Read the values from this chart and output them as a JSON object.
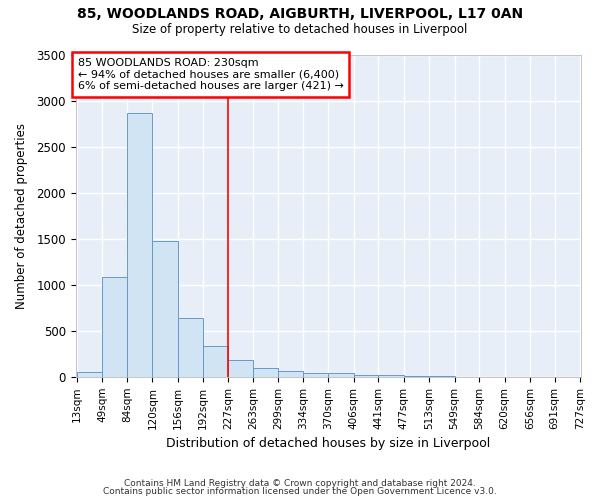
{
  "title_line1": "85, WOODLANDS ROAD, AIGBURTH, LIVERPOOL, L17 0AN",
  "title_line2": "Size of property relative to detached houses in Liverpool",
  "xlabel": "Distribution of detached houses by size in Liverpool",
  "ylabel": "Number of detached properties",
  "bar_color": "#d0e4f4",
  "bar_edge_color": "#6699cc",
  "vline_color": "red",
  "vline_x": 227,
  "annotation_text": "85 WOODLANDS ROAD: 230sqm\n← 94% of detached houses are smaller (6,400)\n6% of semi-detached houses are larger (421) →",
  "bins": [
    13,
    49,
    84,
    120,
    156,
    192,
    227,
    263,
    299,
    334,
    370,
    406,
    441,
    477,
    513,
    549,
    584,
    620,
    656,
    691,
    727
  ],
  "values": [
    50,
    1085,
    2870,
    1480,
    635,
    330,
    185,
    95,
    65,
    45,
    40,
    20,
    15,
    10,
    5,
    3,
    2,
    2,
    1,
    1
  ],
  "ylim": [
    0,
    3500
  ],
  "yticks": [
    0,
    500,
    1000,
    1500,
    2000,
    2500,
    3000,
    3500
  ],
  "footnote_line1": "Contains HM Land Registry data © Crown copyright and database right 2024.",
  "footnote_line2": "Contains public sector information licensed under the Open Government Licence v3.0.",
  "bg_color": "#ffffff",
  "plot_bg_color": "#e8eef8",
  "grid_color": "#ffffff"
}
